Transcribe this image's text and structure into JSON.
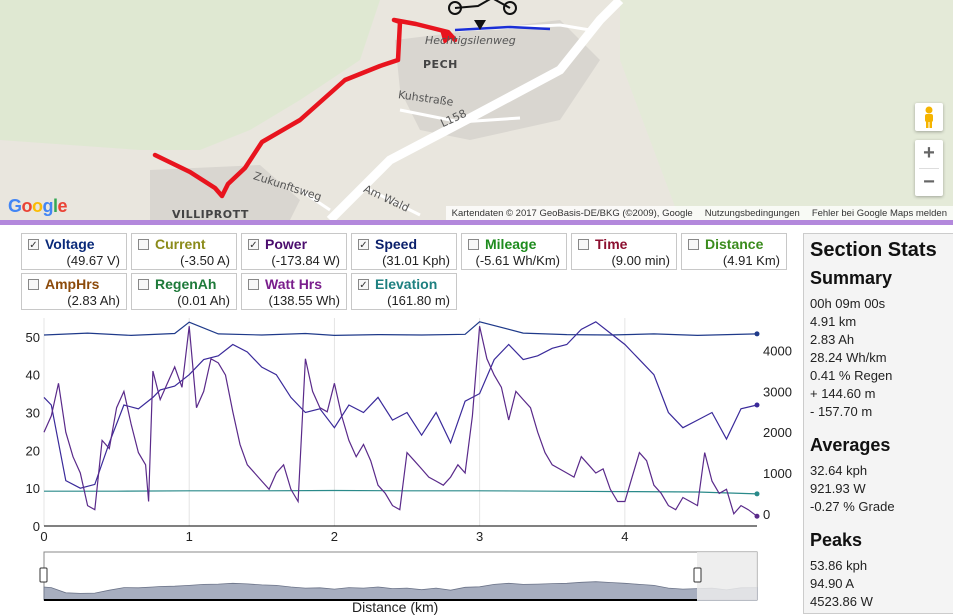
{
  "map": {
    "labels": {
      "street1": "Hechtigsilenweg",
      "town": "PECH",
      "street2": "Kuhstraße",
      "road": "L158",
      "street3": "Zukunftsweg",
      "street4": "Am Wald",
      "town2": "VILLIPROTT"
    },
    "logo": "Google",
    "attribution": [
      "Kartendaten © 2017 GeoBasis-DE/BKG (©2009), Google",
      "Nutzungsbedingungen",
      "Fehler bei Google Maps melden"
    ],
    "zoom_in": "+",
    "zoom_out": "−",
    "route_color": "#e8141e",
    "current_color": "#1b2fd6"
  },
  "metrics": [
    {
      "name": "Voltage",
      "value": "(49.67 V)",
      "checked": true,
      "color": "#0a2a7a"
    },
    {
      "name": "Current",
      "value": "(-3.50 A)",
      "checked": false,
      "color": "#8b8b1a"
    },
    {
      "name": "Power",
      "value": "(-173.84 W)",
      "checked": true,
      "color": "#4b0d6e"
    },
    {
      "name": "Speed",
      "value": "(31.01 Kph)",
      "checked": true,
      "color": "#0a1f6b"
    },
    {
      "name": "Mileage",
      "value": "(-5.61 Wh/Km)",
      "checked": false,
      "color": "#1e8c1e"
    },
    {
      "name": "Time",
      "value": "(9.00 min)",
      "checked": false,
      "color": "#8c1030"
    },
    {
      "name": "Distance",
      "value": "(4.91 Km)",
      "checked": false,
      "color": "#3b8c1e"
    },
    {
      "name": "AmpHrs",
      "value": "(2.83 Ah)",
      "checked": false,
      "color": "#8c4a0a"
    },
    {
      "name": "RegenAh",
      "value": "(0.01 Ah)",
      "checked": false,
      "color": "#1e7a3a"
    },
    {
      "name": "Watt Hrs",
      "value": "(138.55 Wh)",
      "checked": false,
      "color": "#7a1e8c"
    },
    {
      "name": "Elevation",
      "value": "(161.80 m)",
      "checked": true,
      "color": "#1e8080"
    }
  ],
  "chart_data": {
    "type": "line",
    "xlabel": "Distance (km)",
    "x_ticks": [
      "0",
      "1",
      "2",
      "3",
      "4"
    ],
    "xlim": [
      0,
      4.91
    ],
    "y_left_ticks": [
      "0",
      "10",
      "20",
      "30",
      "40",
      "50"
    ],
    "ylim_left": [
      0,
      55
    ],
    "y_right_ticks": [
      "0",
      "1000",
      "2000",
      "3000",
      "4000"
    ],
    "ylim_right": [
      -300,
      4800
    ],
    "series": [
      {
        "name": "Voltage",
        "axis": "left",
        "color": "#1f3a8a",
        "x": [
          0,
          0.3,
          0.6,
          0.9,
          1.0,
          1.2,
          1.5,
          1.8,
          2.0,
          2.3,
          2.6,
          2.9,
          3.0,
          3.3,
          3.6,
          3.9,
          4.2,
          4.5,
          4.91
        ],
        "y": [
          50.5,
          51,
          50.4,
          50.9,
          53.9,
          50.8,
          50.5,
          50.9,
          50.4,
          50.6,
          50.5,
          50.7,
          54,
          51,
          50.6,
          50.5,
          50.8,
          50.4,
          50.8
        ]
      },
      {
        "name": "Elevation",
        "axis": "left",
        "color": "#2a8a8a",
        "x": [
          0,
          0.5,
          1.0,
          1.5,
          2.0,
          2.5,
          3.0,
          3.5,
          4.0,
          4.5,
          4.91
        ],
        "y": [
          9.2,
          9.2,
          9.3,
          9.3,
          9.4,
          9.3,
          9.3,
          9.2,
          9.1,
          9.0,
          8.5
        ]
      },
      {
        "name": "Speed",
        "axis": "left",
        "color": "#3a2a9a",
        "x": [
          0,
          0.05,
          0.15,
          0.25,
          0.35,
          0.45,
          0.55,
          0.65,
          0.75,
          0.8,
          0.9,
          1.0,
          1.1,
          1.2,
          1.3,
          1.4,
          1.5,
          1.6,
          1.7,
          1.8,
          1.9,
          2.0,
          2.1,
          2.2,
          2.3,
          2.4,
          2.5,
          2.6,
          2.7,
          2.8,
          2.9,
          3.0,
          3.1,
          3.2,
          3.3,
          3.4,
          3.5,
          3.6,
          3.7,
          3.8,
          3.9,
          4.0,
          4.1,
          4.2,
          4.3,
          4.4,
          4.5,
          4.6,
          4.7,
          4.8,
          4.91
        ],
        "y": [
          34,
          32,
          12,
          10,
          11,
          22,
          32,
          31,
          34,
          36,
          37,
          40,
          44,
          45,
          48,
          46,
          42,
          40,
          34,
          30,
          31,
          26,
          32,
          30,
          34,
          28,
          30,
          24,
          30,
          22,
          33,
          35,
          44,
          48,
          44,
          45,
          47,
          48,
          52,
          54,
          51,
          48,
          44,
          40,
          30,
          26,
          28,
          30,
          23,
          31,
          32
        ]
      },
      {
        "name": "Power",
        "axis": "right",
        "color": "#5a2a8a",
        "x": [
          0,
          0.05,
          0.1,
          0.15,
          0.2,
          0.25,
          0.3,
          0.35,
          0.4,
          0.45,
          0.5,
          0.55,
          0.6,
          0.65,
          0.7,
          0.72,
          0.75,
          0.8,
          0.85,
          0.9,
          0.95,
          1.0,
          1.05,
          1.1,
          1.15,
          1.2,
          1.25,
          1.3,
          1.35,
          1.4,
          1.45,
          1.5,
          1.55,
          1.6,
          1.65,
          1.7,
          1.75,
          1.8,
          1.85,
          1.9,
          1.95,
          2.0,
          2.05,
          2.1,
          2.15,
          2.2,
          2.25,
          2.3,
          2.35,
          2.4,
          2.45,
          2.5,
          2.55,
          2.6,
          2.65,
          2.7,
          2.75,
          2.8,
          2.85,
          2.9,
          2.95,
          3.0,
          3.05,
          3.1,
          3.15,
          3.2,
          3.25,
          3.3,
          3.35,
          3.4,
          3.45,
          3.5,
          3.55,
          3.6,
          3.65,
          3.7,
          3.75,
          3.8,
          3.85,
          3.9,
          3.95,
          4.0,
          4.05,
          4.1,
          4.15,
          4.2,
          4.25,
          4.3,
          4.35,
          4.4,
          4.45,
          4.5,
          4.55,
          4.6,
          4.65,
          4.7,
          4.75,
          4.8,
          4.85,
          4.91
        ],
        "y": [
          2000,
          2400,
          3200,
          2000,
          1400,
          1000,
          200,
          100,
          1800,
          1600,
          2600,
          3000,
          2200,
          1500,
          1200,
          300,
          3500,
          2800,
          3200,
          3600,
          3100,
          4600,
          2600,
          3000,
          3800,
          3700,
          3400,
          2500,
          1700,
          1200,
          1000,
          800,
          600,
          1000,
          1200,
          600,
          300,
          3800,
          3000,
          2600,
          2500,
          3200,
          2400,
          1800,
          1400,
          1700,
          1300,
          700,
          500,
          200,
          100,
          1500,
          1300,
          1100,
          900,
          800,
          700,
          900,
          1200,
          1000,
          2400,
          4600,
          3800,
          3400,
          3100,
          2300,
          3000,
          2800,
          2600,
          2000,
          1500,
          1200,
          1100,
          1000,
          900,
          1400,
          1200,
          1000,
          1100,
          600,
          300,
          300,
          900,
          1500,
          1300,
          700,
          500,
          200,
          100,
          400,
          300,
          200,
          1500,
          800,
          500,
          600,
          0,
          200,
          100,
          -60
        ]
      }
    ]
  },
  "section_stats": {
    "title": "Section Stats",
    "summary_title": "Summary",
    "summary": [
      "00h 09m 00s",
      "4.91 km",
      "2.83 Ah",
      "28.24 Wh/km",
      "0.41 % Regen",
      "+ 144.60 m",
      "- 157.70 m"
    ],
    "averages_title": "Averages",
    "averages": [
      "32.64 kph",
      "921.93 W",
      "-0.27 % Grade"
    ],
    "peaks_title": "Peaks",
    "peaks": [
      "53.86 kph",
      "94.90 A",
      "4523.86 W"
    ]
  }
}
